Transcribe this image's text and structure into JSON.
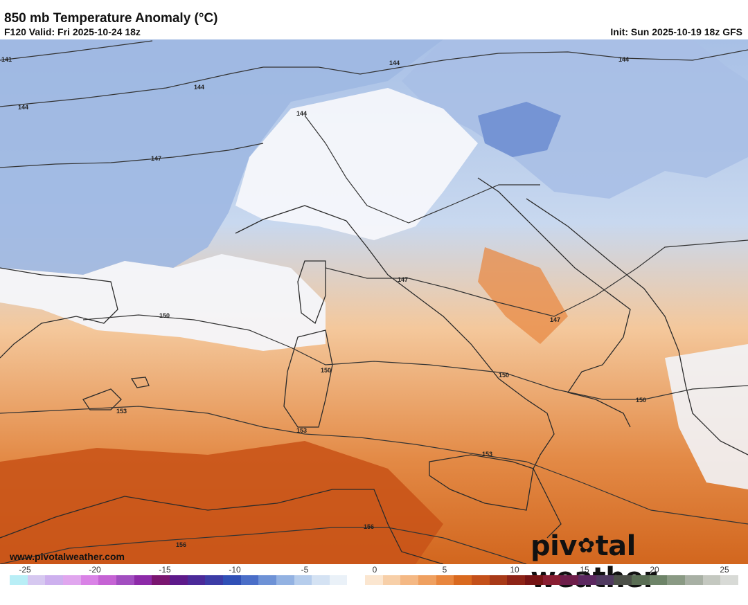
{
  "header": {
    "title": "850 mb Temperature Anomaly (°C)",
    "valid": "F120 Valid: Fri 2025-10-24 18z",
    "init": "Init: Sun 2025-10-19 18z GFS"
  },
  "map": {
    "region": "Western/Central Mediterranean, Italy",
    "contour_labels": [
      "141",
      "144",
      "144",
      "144",
      "144",
      "144",
      "147",
      "147",
      "147",
      "150",
      "150",
      "150",
      "150",
      "153",
      "153",
      "153",
      "156",
      "156"
    ]
  },
  "footer": {
    "url": "www.pivotalweather.com",
    "brand_pre": "piv",
    "brand_post": "tal weather"
  },
  "colorbar": {
    "tick_labels": [
      "-25",
      "-20",
      "-15",
      "-10",
      "-5",
      "0",
      "5",
      "10",
      "15",
      "20",
      "25"
    ],
    "colors": [
      "#b8eef6",
      "#d6c8f0",
      "#cdb0ee",
      "#e0a6ee",
      "#d982e6",
      "#c563d4",
      "#a24ec0",
      "#8d2aa8",
      "#7a1670",
      "#5e1a8a",
      "#4b2a99",
      "#3c3ca6",
      "#3050b6",
      "#4a6ec8",
      "#6e92d6",
      "#93b2e2",
      "#b6cdec",
      "#d4e2f3",
      "#eaf1f8",
      "#ffffff",
      "#fbe6d0",
      "#f7cfa8",
      "#f4b884",
      "#efa060",
      "#e8863e",
      "#d9691f",
      "#c4501a",
      "#a83a18",
      "#8e2417",
      "#761414",
      "#8a1e32",
      "#6e1e4a",
      "#5c2860",
      "#503a60",
      "#4c5048",
      "#5a6e54",
      "#6e8468",
      "#8a9a84",
      "#a8b0a4",
      "#c4c8c0",
      "#d8dad6"
    ]
  }
}
